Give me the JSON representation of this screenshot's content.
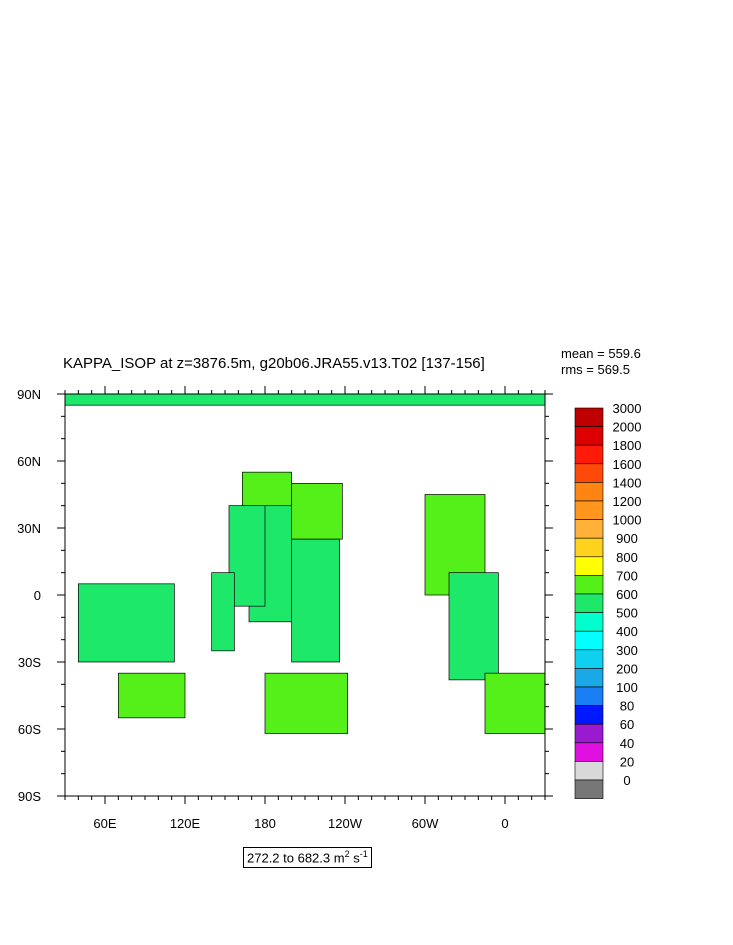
{
  "title": "KAPPA_ISOP at z=3876.5m, g20b06.JRA55.v13.T02 [137-156]",
  "stats": {
    "mean": "mean = 559.6",
    "rms": "rms = 569.5"
  },
  "range_label": {
    "text": "272.2 to 682.3 m",
    "unit_sup1": "2",
    "unit_mid": " s",
    "unit_sup2": "-1"
  },
  "chart_data": {
    "type": "heatmap",
    "title": "KAPPA_ISOP at z=3876.5m, g20b06.JRA55.v13.T02 [137-156]",
    "projection": "cylindrical equidistant",
    "xlim": [
      30,
      390
    ],
    "ylim": [
      -90,
      90
    ],
    "x_ticks": [
      {
        "lon": 60,
        "label": "60E"
      },
      {
        "lon": 120,
        "label": "120E"
      },
      {
        "lon": 180,
        "label": "180"
      },
      {
        "lon": 240,
        "label": "120W"
      },
      {
        "lon": 300,
        "label": "60W"
      },
      {
        "lon": 360,
        "label": "0"
      }
    ],
    "y_ticks": [
      {
        "lat": 90,
        "label": "90N"
      },
      {
        "lat": 60,
        "label": "60N"
      },
      {
        "lat": 30,
        "label": "30N"
      },
      {
        "lat": 0,
        "label": "0"
      },
      {
        "lat": -30,
        "label": "30S"
      },
      {
        "lat": -60,
        "label": "60S"
      },
      {
        "lat": -90,
        "label": "90S"
      }
    ],
    "colorbar": {
      "levels": [
        "0",
        "20",
        "40",
        "60",
        "80",
        "100",
        "200",
        "300",
        "400",
        "500",
        "600",
        "700",
        "800",
        "900",
        "1000",
        "1200",
        "1400",
        "1600",
        "1800",
        "2000",
        "3000"
      ],
      "colors": [
        "#777777",
        "#d9d9d9",
        "#e010e0",
        "#9a1ad0",
        "#0018ff",
        "#1a7ef5",
        "#1aa8e6",
        "#10d0f0",
        "#00ffff",
        "#00ffcc",
        "#1ee86a",
        "#55f01a",
        "#ffff00",
        "#ffd21e",
        "#ffb13a",
        "#ff961e",
        "#ff8412",
        "#ff4a0a",
        "#ff1a0a",
        "#dd0000",
        "#c00000"
      ]
    },
    "mean": 559.6,
    "rms": 569.5,
    "data_min": 272.2,
    "data_max": 682.3,
    "units": "m^2 s^-1",
    "fill_colors": {
      "land": "#ffffff",
      "low": "#00ffcc",
      "high": "#1ee86a",
      "edge": "#1aa8e6"
    },
    "regions": [
      {
        "name": "north-pacific",
        "lon": [
          168,
          208
        ],
        "lat": [
          -12,
          40
        ],
        "value": 550
      },
      {
        "name": "north-pacific-west",
        "lon": [
          153,
          180
        ],
        "lat": [
          -5,
          40
        ],
        "value": 550
      },
      {
        "name": "north-pacific-north",
        "lon": [
          163,
          200
        ],
        "lat": [
          40,
          55
        ],
        "value": 650
      },
      {
        "name": "northeast-pacific",
        "lon": [
          200,
          238
        ],
        "lat": [
          25,
          50
        ],
        "value": 650
      },
      {
        "name": "east-pacific",
        "lon": [
          200,
          236
        ],
        "lat": [
          -30,
          25
        ],
        "value": 550
      },
      {
        "name": "west-pacific",
        "lon": [
          140,
          157
        ],
        "lat": [
          -25,
          10
        ],
        "value": 550
      },
      {
        "name": "indian-ocean",
        "lon": [
          40,
          112
        ],
        "lat": [
          -30,
          5
        ],
        "value": 550
      },
      {
        "name": "north-atlantic",
        "lon": [
          300,
          345
        ],
        "lat": [
          0,
          45
        ],
        "value": 650
      },
      {
        "name": "south-atlantic",
        "lon": [
          318,
          355
        ],
        "lat": [
          -38,
          10
        ],
        "value": 550
      },
      {
        "name": "southern-ocean-indian",
        "lon": [
          70,
          120
        ],
        "lat": [
          -55,
          -35
        ],
        "value": 650
      },
      {
        "name": "southern-ocean-pacific",
        "lon": [
          180,
          242
        ],
        "lat": [
          -62,
          -35
        ],
        "value": 650
      },
      {
        "name": "southern-ocean-atlantic",
        "lon": [
          345,
          390
        ],
        "lat": [
          -62,
          -35
        ],
        "value": 650
      },
      {
        "name": "arctic",
        "lon": [
          30,
          390
        ],
        "lat": [
          85,
          90
        ],
        "value": 550
      }
    ]
  }
}
